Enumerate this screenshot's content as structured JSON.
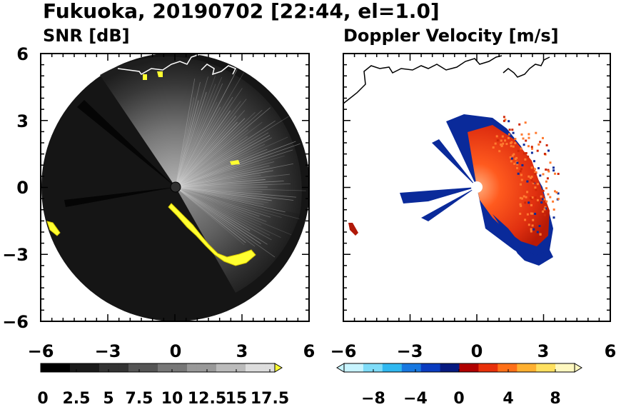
{
  "title": "Fukuoka, 20190702 [22:44, el=1.0]",
  "chart_data": [
    {
      "type": "heatmap",
      "title": "SNR [dB]",
      "xlim": [
        -6,
        6
      ],
      "ylim": [
        -6,
        6
      ],
      "x_ticks": [
        "−6",
        "−3",
        "0",
        "3",
        "6"
      ],
      "y_ticks": [
        "6",
        "3",
        "0",
        "−3",
        "−6"
      ],
      "grid": false,
      "colorbar": {
        "min": 0,
        "max": 18,
        "extend": "max",
        "labels": [
          "0",
          "2.5",
          "5",
          "7.5",
          "10",
          "12.5",
          "15",
          "17.5"
        ],
        "colors": [
          "#000000",
          "#1a1a1a",
          "#333333",
          "#555555",
          "#777777",
          "#999999",
          "#bbbbbb",
          "#dddddd",
          "#ffff33"
        ]
      }
    },
    {
      "type": "heatmap",
      "title": "Doppler Velocity [m/s]",
      "xlim": [
        -6,
        6
      ],
      "ylim": [
        -6,
        6
      ],
      "x_ticks": [
        "−6",
        "−3",
        "0",
        "3",
        "6"
      ],
      "grid": false,
      "colorbar": {
        "min": -10,
        "max": 10,
        "extend": "both",
        "labels": [
          "−8",
          "−4",
          "0",
          "4",
          "8"
        ],
        "colors": [
          "#c8f4ff",
          "#7fdcf8",
          "#30b8f0",
          "#1878e0",
          "#0a3cc0",
          "#071a80",
          "#b00000",
          "#e8300a",
          "#ff7018",
          "#ffb030",
          "#ffe060",
          "#fff8c0"
        ]
      }
    }
  ]
}
